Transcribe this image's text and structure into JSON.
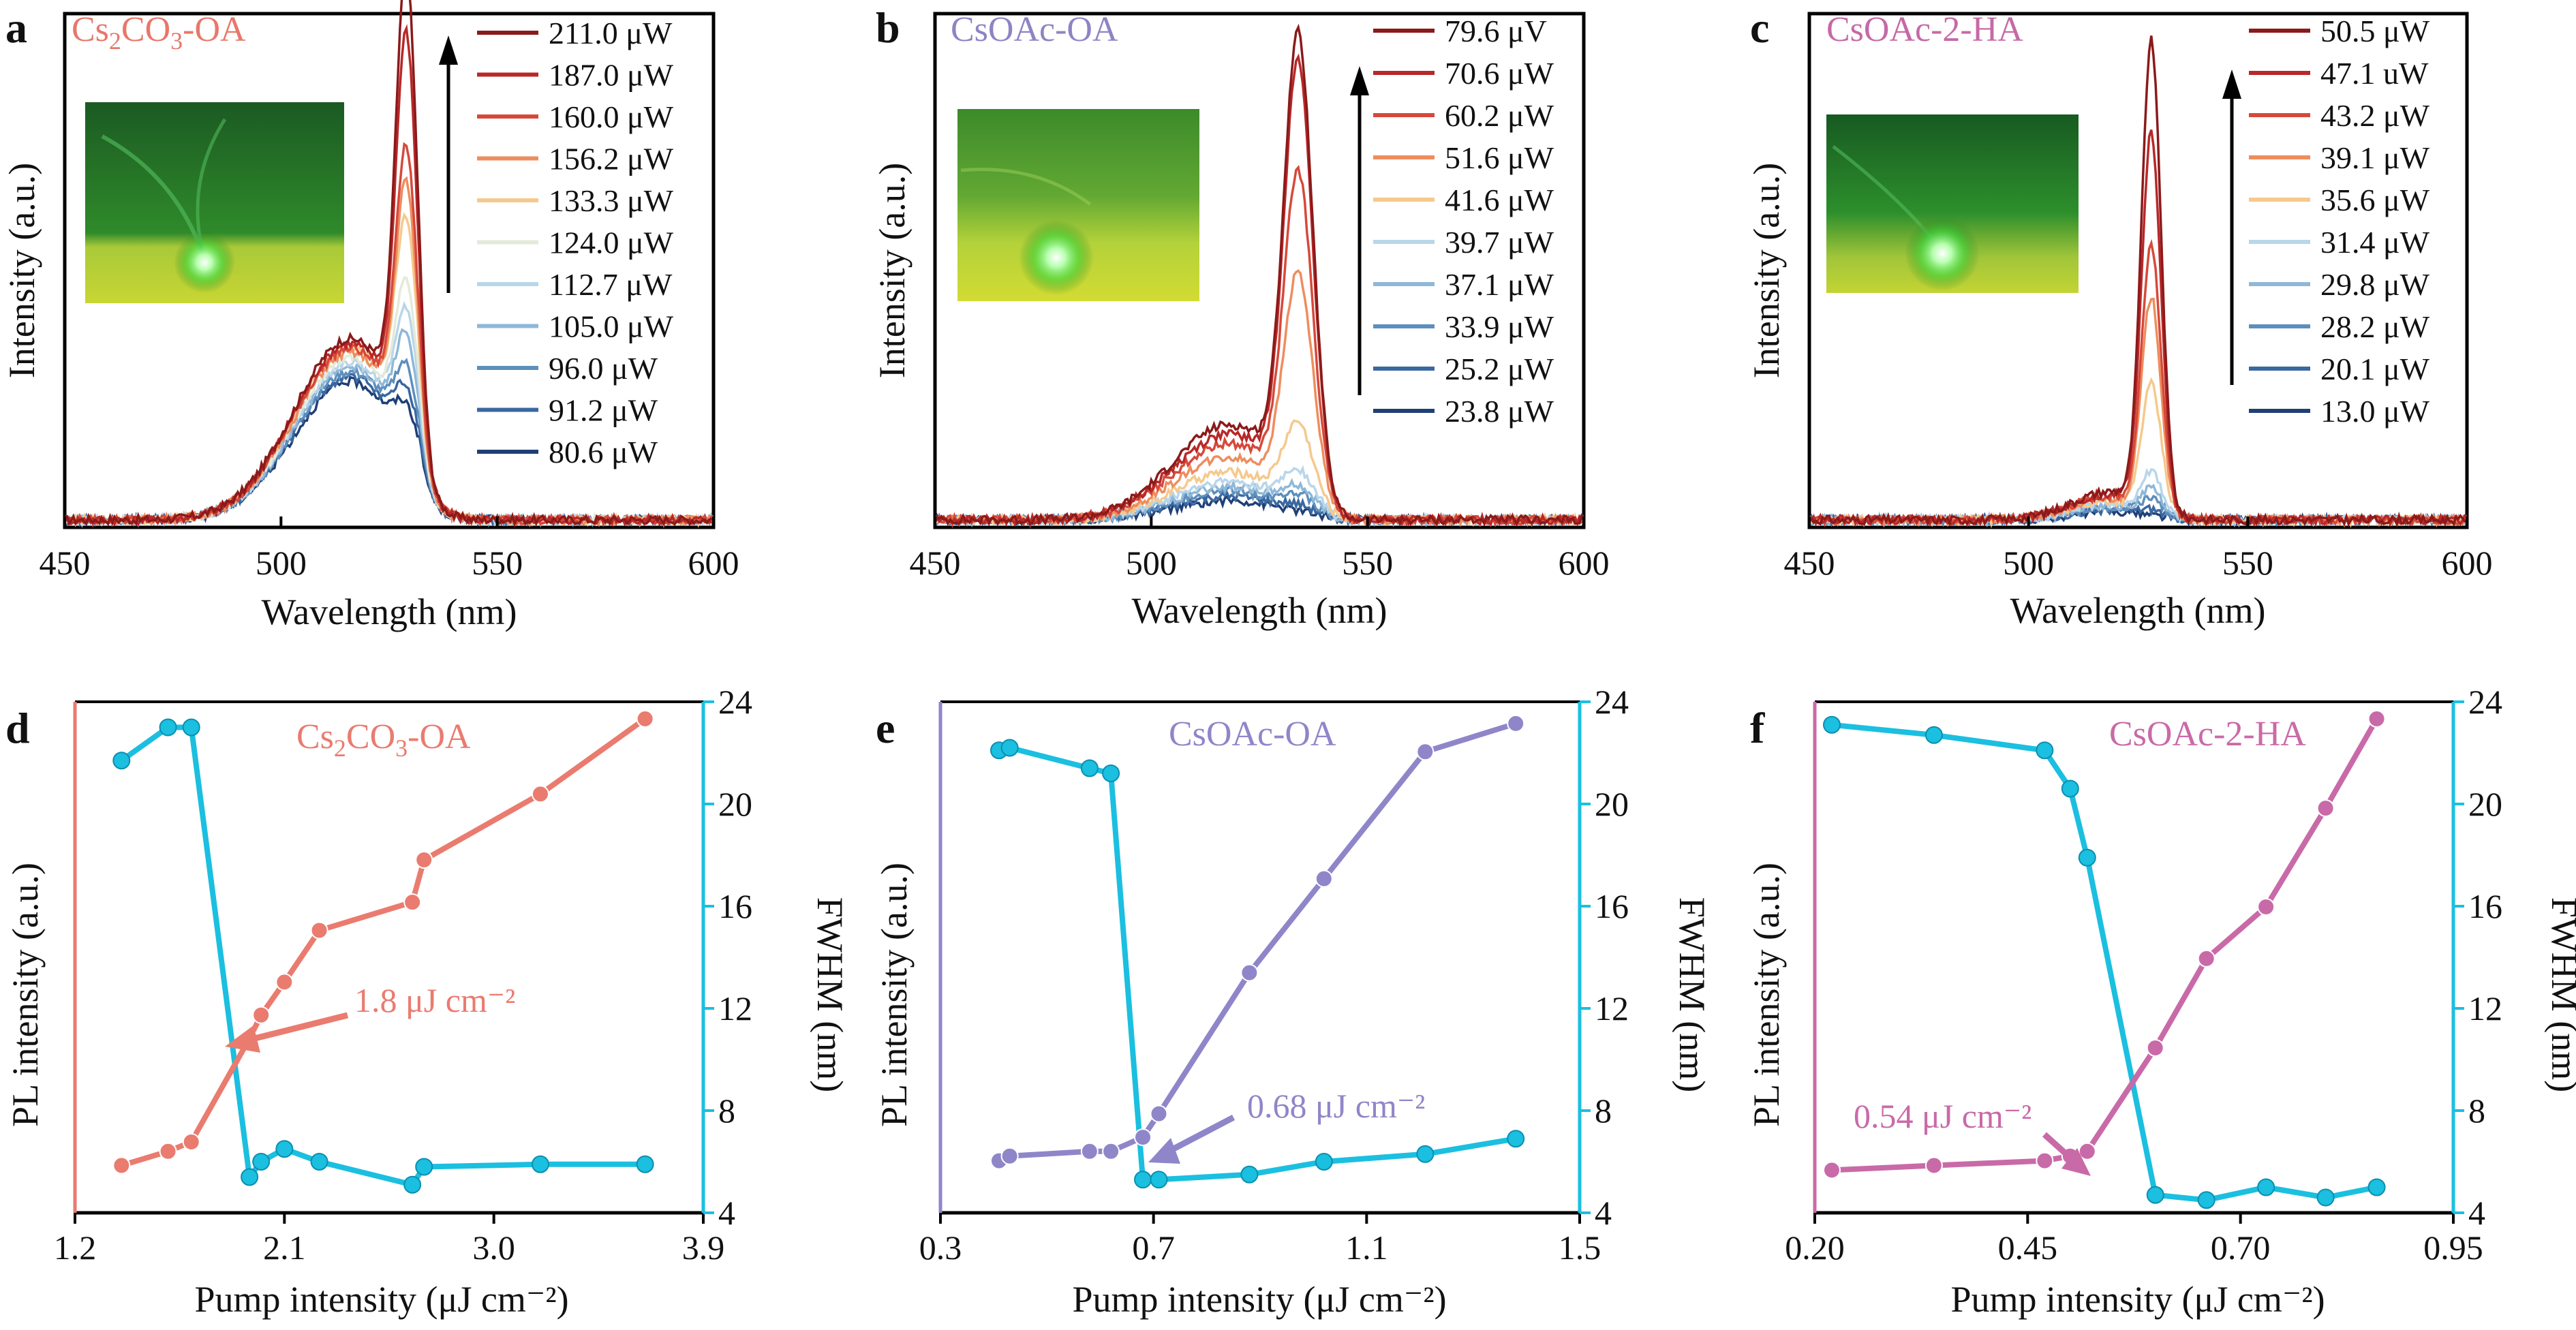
{
  "figure": {
    "top_panels": [
      {
        "letter": "a",
        "title": "Cs₂CO₃-OA",
        "title_color": "#e8776a",
        "xlabel": "Wavelength (nm)",
        "ylabel": "Intensity (a.u.)",
        "xticks": [
          "450",
          "500",
          "550",
          "600"
        ],
        "legend": [
          "211.0 μW",
          "187.0 μW",
          "160.0 μW",
          "156.2 μW",
          "133.3 μW",
          "124.0 μW",
          "112.7 μW",
          "105.0 μW",
          "96.0 μW",
          "91.2 μW",
          "80.6 μW"
        ],
        "inset": "green lasing photograph"
      },
      {
        "letter": "b",
        "title": "CsOAc-OA",
        "title_color": "#8d84c4",
        "xlabel": "Wavelength (nm)",
        "ylabel": "Intensity (a.u.)",
        "xticks": [
          "450",
          "500",
          "550",
          "600"
        ],
        "legend": [
          "79.6 μV",
          "70.6 μW",
          "60.2 μW",
          "51.6 μW",
          "41.6 μW",
          "39.7 μW",
          "37.1 μW",
          "33.9 μW",
          "25.2 μW",
          "23.8 μW"
        ],
        "inset": "green lasing photograph"
      },
      {
        "letter": "c",
        "title": "CsOAc-2-HA",
        "title_color": "#c669a6",
        "xlabel": "Wavelength (nm)",
        "ylabel": "Intensity (a.u.)",
        "xticks": [
          "450",
          "500",
          "550",
          "600"
        ],
        "legend": [
          "50.5 μW",
          "47.1 uW",
          "43.2 μW",
          "39.1 μW",
          "35.6 μW",
          "31.4 μW",
          "29.8 μW",
          "28.2 μW",
          "20.1 μW",
          "13.0 μW"
        ],
        "inset": "green lasing photograph"
      }
    ],
    "bottom_panels": [
      {
        "letter": "d",
        "title": "Cs₂CO₃-OA",
        "color": "#ea7b6f",
        "xlabel": "Pump intensity (μJ cm⁻²)",
        "ylabel_left": "PL intensity (a.u.)",
        "ylabel_right": "FWHM (nm)",
        "xticks": [
          "1.2",
          "2.1",
          "3.0",
          "3.9"
        ],
        "yticks_right": [
          "4",
          "8",
          "12",
          "16",
          "20",
          "24"
        ],
        "annotation": "1.8 μJ cm⁻²"
      },
      {
        "letter": "e",
        "title": "CsOAc-OA",
        "color": "#8f86c9",
        "xlabel": "Pump intensity (μJ cm⁻²)",
        "ylabel_left": "PL intensity (a.u.)",
        "ylabel_right": "FWHM (nm)",
        "xticks": [
          "0.3",
          "0.7",
          "1.1",
          "1.5"
        ],
        "yticks_right": [
          "4",
          "8",
          "12",
          "16",
          "20",
          "24"
        ],
        "annotation": "0.68 μJ cm⁻²"
      },
      {
        "letter": "f",
        "title": "CsOAc-2-HA",
        "color": "#c96aa8",
        "xlabel": "Pump intensity (μJ cm⁻²)",
        "ylabel_left": "PL intensity (a.u.)",
        "ylabel_right": "FWHM (nm)",
        "xticks": [
          "0.20",
          "0.45",
          "0.70",
          "0.95"
        ],
        "yticks_right": [
          "4",
          "8",
          "12",
          "16",
          "20",
          "24"
        ],
        "annotation": "0.54 μJ cm⁻²"
      }
    ],
    "colors": {
      "fwhm": "#1bbfe0",
      "spectra_palette": [
        "#8b1a1a",
        "#b82828",
        "#d6493a",
        "#ee8d5e",
        "#f5c98d",
        "#e3ead9",
        "#b9d6ea",
        "#8fb8d8",
        "#5e8fbd",
        "#3a68a0",
        "#1f3f77"
      ]
    }
  },
  "chart_data": [
    {
      "type": "line",
      "panel": "a",
      "x_range": [
        450,
        600
      ],
      "series_labels": [
        "211.0 μW",
        "187.0 μW",
        "160.0 μW",
        "156.2 μW",
        "133.3 μW",
        "124.0 μW",
        "112.7 μW",
        "105.0 μW",
        "96.0 μW",
        "91.2 μW",
        "80.6 μW"
      ],
      "peak_amplitude": [
        0.93,
        0.8,
        0.57,
        0.5,
        0.42,
        0.3,
        0.25,
        0.2,
        0.14,
        0.1,
        0.07
      ],
      "broad_amplitude": [
        0.38,
        0.37,
        0.36,
        0.35,
        0.36,
        0.34,
        0.33,
        0.32,
        0.31,
        0.3,
        0.29
      ],
      "peak_center": 529,
      "broad_center": 516
    },
    {
      "type": "line",
      "panel": "b",
      "x_range": [
        450,
        600
      ],
      "series_labels": [
        "79.6 μV",
        "70.6 μW",
        "60.2 μW",
        "51.6 μW",
        "41.6 μW",
        "39.7 μW",
        "37.1 μW",
        "33.9 μW",
        "25.2 μW",
        "23.8 μW"
      ],
      "peak_amplitude": [
        0.93,
        0.88,
        0.66,
        0.46,
        0.16,
        0.07,
        0.04,
        0.03,
        0.01,
        0.0
      ],
      "broad_amplitude": [
        0.2,
        0.18,
        0.16,
        0.13,
        0.1,
        0.08,
        0.07,
        0.06,
        0.05,
        0.04
      ],
      "peak_center": 534,
      "broad_center": 518
    },
    {
      "type": "line",
      "panel": "c",
      "x_range": [
        450,
        600
      ],
      "series_labels": [
        "50.5 μW",
        "47.1 uW",
        "43.2 μW",
        "39.1 μW",
        "35.6 μW",
        "31.4 μW",
        "29.8 μW",
        "28.2 μW",
        "20.1 μW",
        "13.0 μW"
      ],
      "peak_amplitude": [
        0.97,
        0.78,
        0.55,
        0.44,
        0.26,
        0.08,
        0.05,
        0.03,
        0.01,
        0.0
      ],
      "broad_amplitude": [
        0.06,
        0.055,
        0.05,
        0.045,
        0.04,
        0.035,
        0.03,
        0.027,
        0.022,
        0.018
      ],
      "peak_center": 528,
      "broad_center": 519
    },
    {
      "type": "line",
      "panel": "d",
      "x_range": [
        1.2,
        3.9
      ],
      "x": [
        1.4,
        1.6,
        1.7,
        1.95,
        2.0,
        2.1,
        2.25,
        2.65,
        2.7,
        3.2,
        3.65
      ],
      "pl_intensity": [
        0.05,
        0.08,
        0.1,
        0.32,
        0.37,
        0.44,
        0.55,
        0.61,
        0.7,
        0.84,
        1.0
      ],
      "fwhm_range": [
        4,
        24
      ],
      "fwhm": [
        21.7,
        23.0,
        23.0,
        5.4,
        6.0,
        6.5,
        6.0,
        5.1,
        5.8,
        5.9,
        5.9
      ]
    },
    {
      "type": "line",
      "panel": "e",
      "x_range": [
        0.3,
        1.5
      ],
      "x": [
        0.41,
        0.43,
        0.58,
        0.62,
        0.68,
        0.71,
        0.88,
        1.02,
        1.21,
        1.38
      ],
      "pl_intensity": [
        0.06,
        0.07,
        0.08,
        0.08,
        0.11,
        0.16,
        0.46,
        0.66,
        0.93,
        0.99
      ],
      "fwhm_range": [
        4,
        24
      ],
      "fwhm": [
        22.1,
        22.2,
        21.4,
        21.2,
        5.3,
        5.3,
        5.5,
        6.0,
        6.3,
        6.9
      ]
    },
    {
      "type": "line",
      "panel": "f",
      "x_range": [
        0.2,
        0.95
      ],
      "x": [
        0.22,
        0.34,
        0.47,
        0.5,
        0.52,
        0.6,
        0.66,
        0.73,
        0.8,
        0.86
      ],
      "pl_intensity": [
        0.04,
        0.05,
        0.06,
        0.07,
        0.08,
        0.3,
        0.49,
        0.6,
        0.81,
        1.0
      ],
      "fwhm_range": [
        4,
        24
      ],
      "fwhm": [
        23.1,
        22.7,
        22.1,
        20.6,
        17.9,
        4.7,
        4.5,
        5.0,
        4.6,
        5.0
      ]
    }
  ]
}
